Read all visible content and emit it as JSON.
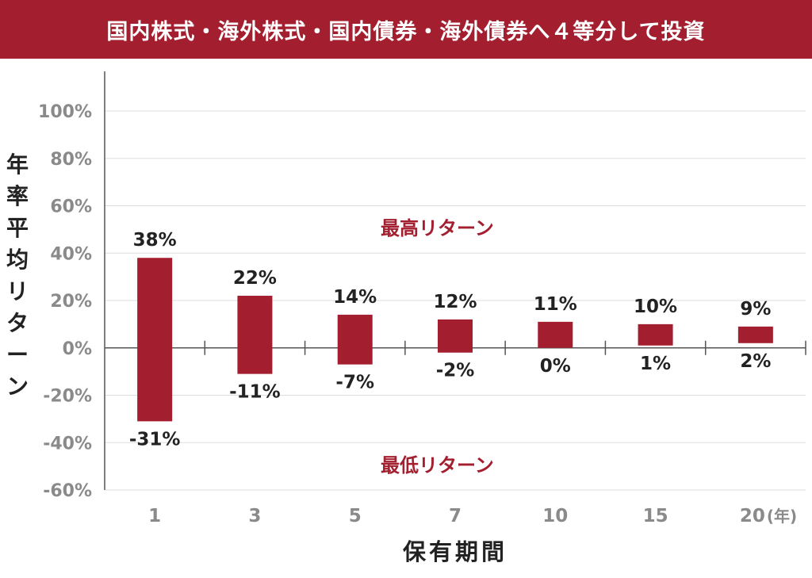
{
  "banner": {
    "title": "国内株式・海外株式・国内債券・海外債券へ４等分して投資"
  },
  "colors": {
    "accent": "#a31f2f",
    "grid": "#dddddd",
    "axis": "#555555",
    "tick_text": "#8a8a8a",
    "value_text": "#222222"
  },
  "chart_data": {
    "type": "bar",
    "ylabel": "年率平均リターン",
    "xlabel": "保有期間",
    "x_unit_suffix": "(年)",
    "categories": [
      "1",
      "3",
      "5",
      "7",
      "10",
      "15",
      "20"
    ],
    "series": [
      {
        "name": "最高リターン",
        "values": [
          38,
          22,
          14,
          12,
          11,
          10,
          9
        ]
      },
      {
        "name": "最低リターン",
        "values": [
          -31,
          -11,
          -7,
          -2,
          0,
          1,
          2
        ]
      }
    ],
    "max_labels": [
      "38%",
      "22%",
      "14%",
      "12%",
      "11%",
      "10%",
      "9%"
    ],
    "min_labels": [
      "-31%",
      "-11%",
      "-7%",
      "-2%",
      "0%",
      "1%",
      "2%"
    ],
    "ylim": [
      -60,
      100
    ],
    "yticks": [
      100,
      80,
      60,
      40,
      20,
      0,
      -20,
      -40,
      -60
    ],
    "ytick_labels": [
      "100%",
      "80%",
      "60%",
      "40%",
      "20%",
      "0%",
      "-20%",
      "-40%",
      "-60%"
    ],
    "grid": true,
    "annotations": {
      "max_label": "最高リターン",
      "min_label": "最低リターン"
    }
  }
}
